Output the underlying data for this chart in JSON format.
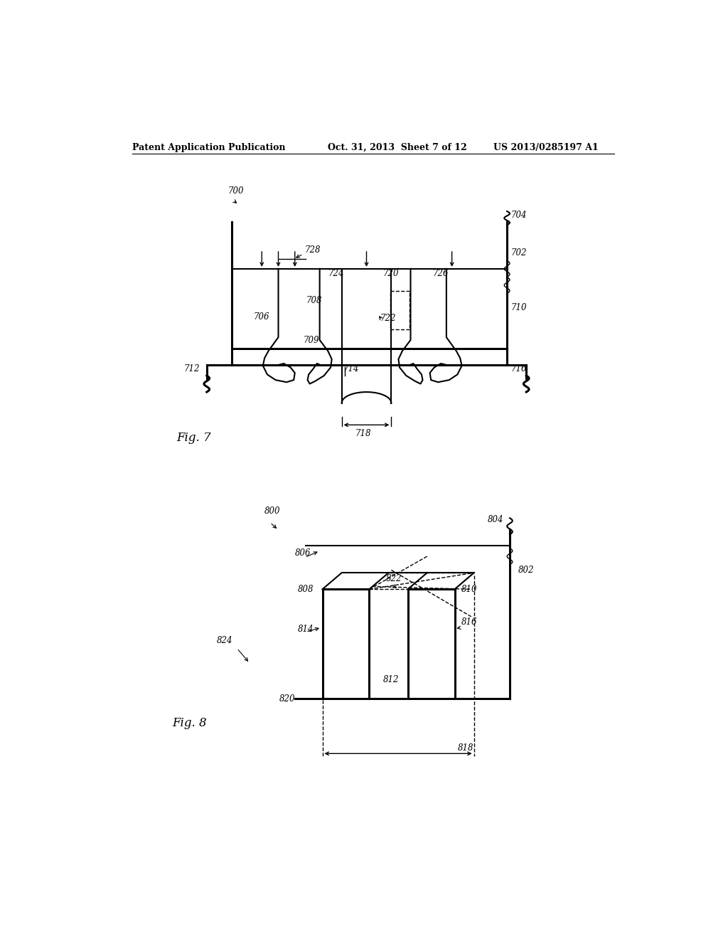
{
  "bg_color": "#ffffff",
  "header_left": "Patent Application Publication",
  "header_mid": "Oct. 31, 2013  Sheet 7 of 12",
  "header_right": "US 2013/0285197 A1",
  "fig7_label": "Fig. 7",
  "fig8_label": "Fig. 8"
}
